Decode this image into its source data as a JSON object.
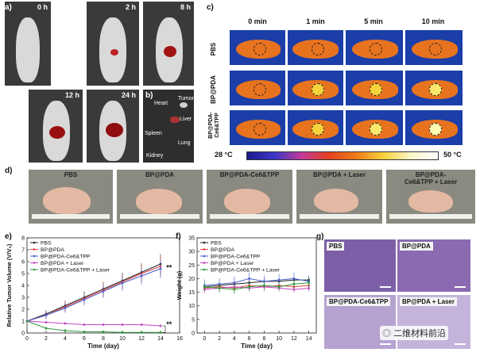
{
  "panels": {
    "a": "a)",
    "b": "b)",
    "c": "c)",
    "d": "d)",
    "e": "e)",
    "f": "f)",
    "g": "g)"
  },
  "panel_a": {
    "times": [
      "0 h",
      "2 h",
      "8 h",
      "12 h",
      "24 h"
    ]
  },
  "panel_b": {
    "organs": [
      "Heart",
      "Tumor",
      "Liver",
      "Spleen",
      "Lung",
      "Kidney"
    ]
  },
  "panel_c": {
    "columns": [
      "0 min",
      "1 min",
      "5 min",
      "10 min"
    ],
    "rows": [
      "PBS",
      "BP@PDA",
      "BP@PDA-Ce6&TPP"
    ],
    "scale_min": "28 °C",
    "scale_max": "50 °C"
  },
  "panel_d": {
    "groups": [
      "PBS",
      "BP@PDA",
      "BP@PDA-Ce6&TPP",
      "BP@PDA + Laser",
      "BP@PDA-Ce6&TPP + Laser"
    ]
  },
  "panel_g": {
    "labels": [
      "PBS",
      "BP@PDA",
      "BP@PDA-Ce6&TPP",
      "BP@PDA + Laser"
    ]
  },
  "watermark": "二维材料前沿",
  "colors": {
    "PBS": "#222222",
    "BP@PDA": "#e0413a",
    "BP@PDA-Ce6&TPP": "#4a5fd0",
    "BP@PDA + Laser": "#c145c4",
    "BP@PDA-Ce6&TPP + Laser": "#2a9a3a"
  },
  "chart_data": [
    {
      "type": "line",
      "xlabel": "Time (day)",
      "ylabel": "Relative Tumor Volume (V/V₀)",
      "x": [
        0,
        2,
        4,
        6,
        8,
        10,
        12,
        14
      ],
      "xticks": [
        0,
        2,
        4,
        6,
        8,
        10,
        12,
        14,
        16
      ],
      "yticks": [
        0,
        1,
        2,
        3,
        4,
        5,
        6,
        7,
        8
      ],
      "xlim": [
        0,
        16
      ],
      "ylim": [
        0,
        8
      ],
      "annotations": [
        "**",
        "**"
      ],
      "series": [
        {
          "name": "PBS",
          "values": [
            1.0,
            1.6,
            2.3,
            3.0,
            3.7,
            4.4,
            5.1,
            5.8
          ]
        },
        {
          "name": "BP@PDA",
          "values": [
            1.0,
            1.5,
            2.2,
            2.9,
            3.6,
            4.3,
            5.0,
            5.6
          ]
        },
        {
          "name": "BP@PDA-Ce6&TPP",
          "values": [
            1.0,
            1.5,
            2.1,
            2.8,
            3.5,
            4.2,
            4.8,
            5.4
          ]
        },
        {
          "name": "BP@PDA + Laser",
          "values": [
            1.0,
            0.9,
            0.8,
            0.7,
            0.7,
            0.7,
            0.7,
            0.6
          ]
        },
        {
          "name": "BP@PDA-Ce6&TPP + Laser",
          "values": [
            1.0,
            0.4,
            0.2,
            0.1,
            0.1,
            0.05,
            0.05,
            0.05
          ]
        }
      ]
    },
    {
      "type": "line",
      "xlabel": "Time (day)",
      "ylabel": "Weight (g)",
      "x": [
        0,
        2,
        4,
        6,
        8,
        10,
        12,
        14
      ],
      "xticks": [
        0,
        2,
        4,
        6,
        8,
        10,
        12,
        14
      ],
      "yticks": [
        0,
        5,
        10,
        15,
        20,
        25,
        30,
        35
      ],
      "xlim": [
        -1,
        15
      ],
      "ylim": [
        0,
        35
      ],
      "series": [
        {
          "name": "PBS",
          "values": [
            17.0,
            17.5,
            18.0,
            18.5,
            19.0,
            19.0,
            19.5,
            19.5
          ]
        },
        {
          "name": "BP@PDA",
          "values": [
            16.5,
            17.0,
            16.5,
            17.5,
            17.0,
            17.5,
            17.0,
            17.5
          ]
        },
        {
          "name": "BP@PDA-Ce6&TPP",
          "values": [
            17.5,
            18.0,
            18.5,
            20.0,
            19.0,
            19.5,
            20.0,
            19.0
          ]
        },
        {
          "name": "BP@PDA + Laser",
          "values": [
            16.0,
            16.5,
            17.0,
            16.5,
            17.0,
            16.5,
            16.0,
            16.5
          ]
        },
        {
          "name": "BP@PDA-Ce6&TPP + Laser",
          "values": [
            17.0,
            16.5,
            16.0,
            17.0,
            17.5,
            17.0,
            18.0,
            18.5
          ]
        }
      ]
    }
  ]
}
